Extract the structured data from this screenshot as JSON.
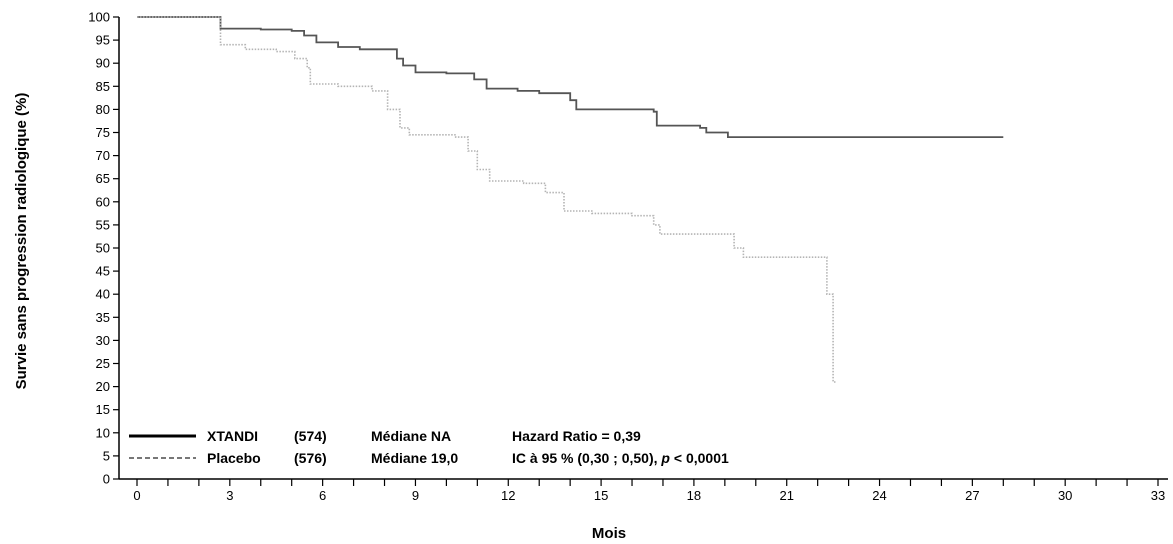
{
  "chart_data": {
    "type": "line",
    "xlabel": "Mois",
    "ylabel": "Survie sans progression radiologique (%)",
    "xlim": [
      0,
      33
    ],
    "ylim": [
      0,
      100
    ],
    "x_ticks": [
      0,
      3,
      6,
      9,
      12,
      15,
      18,
      21,
      24,
      27,
      30,
      33
    ],
    "y_ticks": [
      0,
      5,
      10,
      15,
      20,
      25,
      30,
      35,
      40,
      45,
      50,
      55,
      60,
      65,
      70,
      75,
      80,
      85,
      90,
      95,
      100
    ],
    "grid": false,
    "legend_position": "bottom-left",
    "series": [
      {
        "name": "XTANDI",
        "n": "(574)",
        "median": "Médiane NA",
        "color": "#555555",
        "style": "solid",
        "points": [
          [
            0,
            100
          ],
          [
            2.6,
            100
          ],
          [
            2.7,
            97.5
          ],
          [
            4,
            97.3
          ],
          [
            5,
            97
          ],
          [
            5.4,
            96
          ],
          [
            5.8,
            94.5
          ],
          [
            6.5,
            93.5
          ],
          [
            7.2,
            93
          ],
          [
            8.4,
            91
          ],
          [
            8.6,
            89.5
          ],
          [
            9,
            88
          ],
          [
            10,
            87.8
          ],
          [
            10.9,
            86.5
          ],
          [
            11.3,
            84.5
          ],
          [
            12.3,
            84
          ],
          [
            13,
            83.5
          ],
          [
            14,
            82
          ],
          [
            14.2,
            80
          ],
          [
            16.7,
            79.5
          ],
          [
            16.8,
            76.5
          ],
          [
            18.2,
            76
          ],
          [
            18.4,
            75
          ],
          [
            19,
            75
          ],
          [
            19.1,
            74
          ],
          [
            28,
            74
          ]
        ]
      },
      {
        "name": "Placebo",
        "n": "(576)",
        "median": "Médiane 19,0",
        "color": "#b4b4b4",
        "style": "dotted",
        "points": [
          [
            0,
            100
          ],
          [
            2.5,
            100
          ],
          [
            2.7,
            94
          ],
          [
            3.5,
            93
          ],
          [
            4.5,
            92.5
          ],
          [
            5.1,
            91
          ],
          [
            5.5,
            89
          ],
          [
            5.6,
            85.5
          ],
          [
            6.5,
            85
          ],
          [
            7.6,
            84
          ],
          [
            8.1,
            80
          ],
          [
            8.5,
            76
          ],
          [
            8.8,
            74.5
          ],
          [
            10.3,
            74
          ],
          [
            10.7,
            71
          ],
          [
            11,
            67
          ],
          [
            11.4,
            64.5
          ],
          [
            12.5,
            64
          ],
          [
            13.2,
            62
          ],
          [
            13.8,
            58
          ],
          [
            14.7,
            57.5
          ],
          [
            16,
            57
          ],
          [
            16.7,
            55
          ],
          [
            16.9,
            53
          ],
          [
            19,
            53
          ],
          [
            19.3,
            50
          ],
          [
            19.6,
            48
          ],
          [
            22.2,
            48
          ],
          [
            22.3,
            40
          ],
          [
            22.5,
            21
          ],
          [
            22.6,
            21
          ]
        ]
      }
    ],
    "annotation": {
      "hazard_ratio": "Hazard Ratio = 0,39",
      "ic_prefix": "IC à 95 % (0,30 ; 0,50),",
      "p_symbol": "p",
      "p_value": "< 0,0001"
    }
  }
}
